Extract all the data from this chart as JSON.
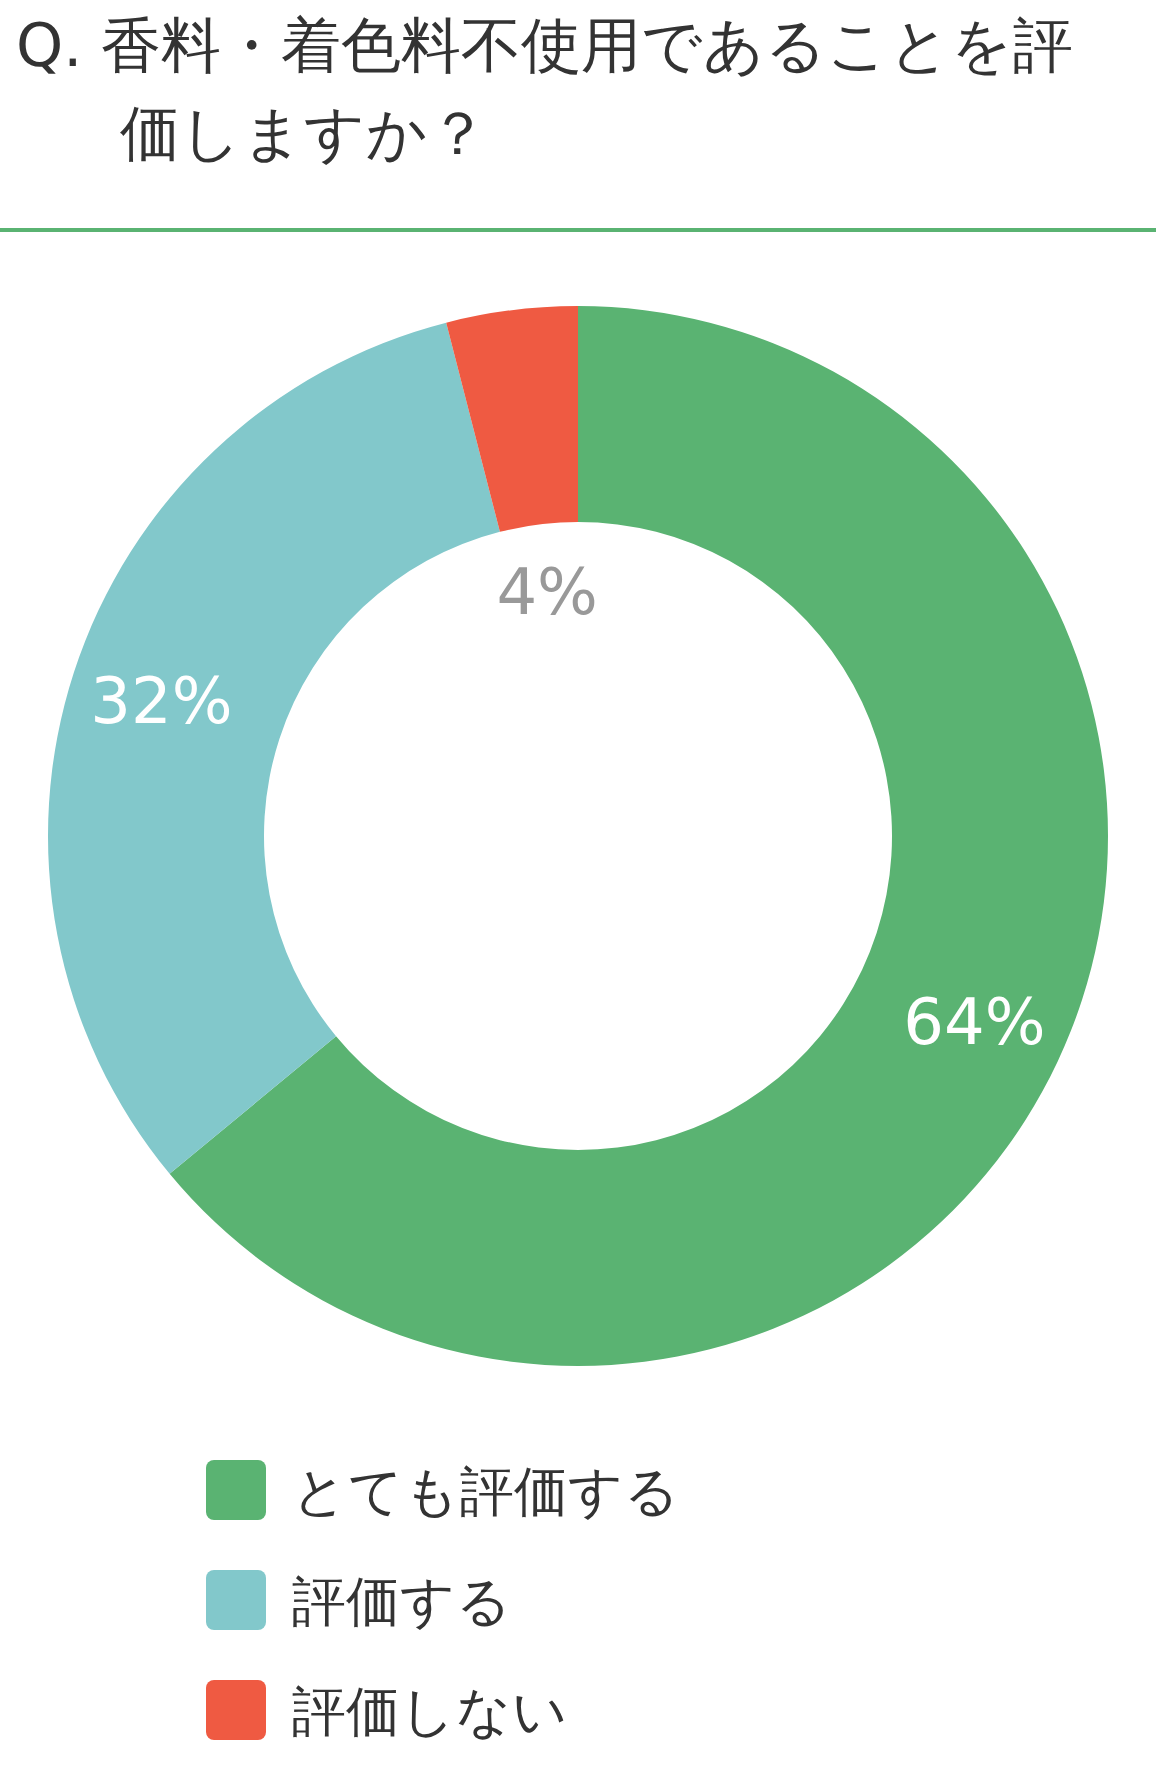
{
  "chart_data": {
    "type": "donut",
    "title": "Q. 香料・着色料不使用であることを評価しますか？",
    "categories": [
      "とても評価する",
      "評価する",
      "評価しない"
    ],
    "values": [
      64,
      32,
      4
    ],
    "colors": [
      "#5ab372",
      "#82c8cb",
      "#ef5a42"
    ],
    "value_labels": [
      "64%",
      "32%",
      "4%"
    ],
    "legend": "bottom"
  }
}
